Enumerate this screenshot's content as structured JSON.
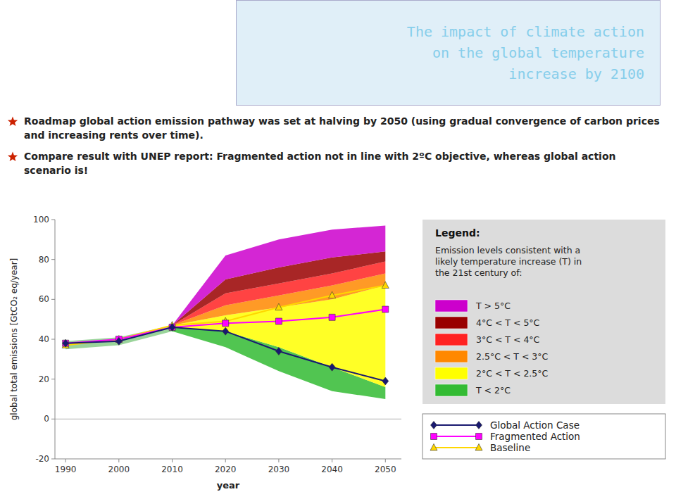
{
  "chart_data": {
    "type": "line",
    "title": "The impact of climate action\non the global temperature\nincrease by 2100",
    "title_color": "#87CEEB",
    "annotations": [
      "Roadmap global action emission pathway was set at halving by 2050 (using gradual convergence of carbon prices and increasing rents over time).",
      "Compare result with UNEP report: Fragmented action not in line with 2ºC objective, whereas global action scenario is!"
    ],
    "x": [
      1990,
      2000,
      2010,
      2020,
      2030,
      2040,
      2050
    ],
    "xlabel": "year",
    "ylabel": "global total emissions [GtCO₂ eq/year]",
    "xlim": [
      1988,
      2053
    ],
    "ylim": [
      -20,
      100
    ],
    "xticks": [
      1990,
      2000,
      2010,
      2020,
      2030,
      2040,
      2050
    ],
    "yticks": [
      -20,
      0,
      20,
      40,
      60,
      80,
      100
    ],
    "grid": false,
    "series": [
      {
        "name": "Global Action Case",
        "color": "#191970",
        "marker": "diamond",
        "values": [
          38,
          39,
          46,
          44,
          34,
          26,
          19
        ]
      },
      {
        "name": "Fragmented Action",
        "color": "#FF00FF",
        "marker": "square",
        "values": [
          38,
          40,
          46,
          48,
          49,
          51,
          55
        ]
      },
      {
        "name": "Baseline",
        "color": "#FFD700",
        "marker": "triangle",
        "values": [
          37,
          40,
          47,
          49,
          56,
          62,
          67
        ]
      }
    ],
    "bands": [
      {
        "color": "#88CC88",
        "x": [
          1990,
          2000,
          2010
        ],
        "lower": [
          35,
          37,
          44
        ],
        "upper": [
          39,
          41,
          47
        ]
      },
      {
        "name": "T < 2°C",
        "color": "#33BB33",
        "x": [
          2010,
          2020,
          2030,
          2040,
          2050
        ],
        "upper": [
          46,
          44,
          36,
          26,
          16
        ],
        "lower": [
          44,
          36,
          24,
          14,
          10
        ]
      },
      {
        "name": "2°C < T < 2.5°C",
        "color": "#FFFF00",
        "x": [
          2010,
          2020,
          2030,
          2040,
          2050
        ],
        "upper": [
          47,
          52,
          56,
          60,
          67
        ],
        "lower": [
          46,
          44,
          36,
          26,
          16
        ]
      },
      {
        "name": "2.5°C < T < 3°C",
        "color": "#FF8800",
        "x": [
          2010,
          2020,
          2030,
          2040,
          2050
        ],
        "upper": [
          47,
          57,
          62,
          67,
          73
        ],
        "lower": [
          47,
          52,
          56,
          60,
          67
        ]
      },
      {
        "name": "3°C < T < 4°C",
        "color": "#FF2222",
        "x": [
          2010,
          2020,
          2030,
          2040,
          2050
        ],
        "upper": [
          47,
          63,
          68,
          73,
          79
        ],
        "lower": [
          47,
          57,
          62,
          67,
          73
        ]
      },
      {
        "name": "4°C < T < 5°C",
        "color": "#990000",
        "x": [
          2010,
          2020,
          2030,
          2040,
          2050
        ],
        "upper": [
          47,
          70,
          76,
          81,
          84
        ],
        "lower": [
          47,
          63,
          68,
          73,
          79
        ]
      },
      {
        "name": "T > 5°C",
        "color": "#CC00CC",
        "x": [
          2010,
          2020,
          2030,
          2040,
          2050
        ],
        "upper": [
          47,
          82,
          90,
          95,
          97
        ],
        "lower": [
          47,
          70,
          76,
          81,
          84
        ]
      }
    ],
    "legend_title": "Legend:",
    "legend_subtitle": "Emission levels consistent with a\nlikely temperature increase (T) in\nthe 21st century of:"
  }
}
